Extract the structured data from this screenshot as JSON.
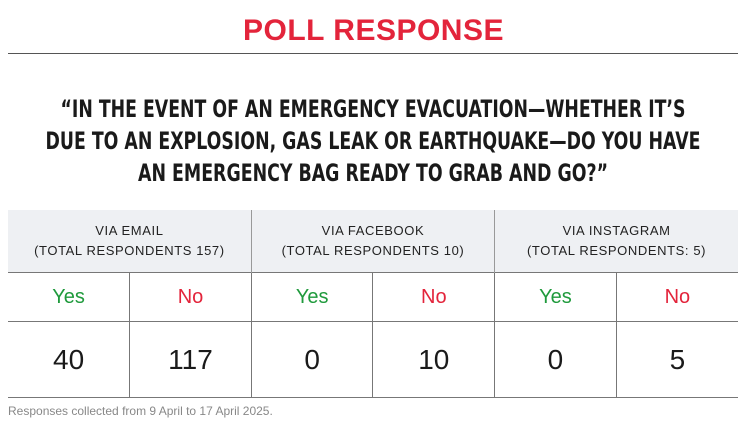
{
  "header": {
    "title": "POLL RESPONSE"
  },
  "question": {
    "lines": [
      "“IN THE EVENT OF AN EMERGENCY EVACUATION—WHETHER IT’S",
      "DUE TO AN EXPLOSION, GAS LEAK OR EARTHQUAKE—DO YOU HAVE",
      "AN EMERGENCY BAG READY TO GRAB AND GO?”"
    ]
  },
  "table": {
    "groups": [
      {
        "channel": "VIA EMAIL",
        "total": "(TOTAL RESPONDENTS 157)",
        "answers": [
          {
            "label": "Yes",
            "count": "40"
          },
          {
            "label": "No",
            "count": "117"
          }
        ]
      },
      {
        "channel": "VIA FACEBOOK",
        "total": "(TOTAL RESPONDENTS 10)",
        "answers": [
          {
            "label": "Yes",
            "count": "0"
          },
          {
            "label": "No",
            "count": "10"
          }
        ]
      },
      {
        "channel": "VIA INSTAGRAM",
        "total": "(TOTAL RESPONDENTS: 5)",
        "answers": [
          {
            "label": "Yes",
            "count": "0"
          },
          {
            "label": "No",
            "count": "5"
          }
        ]
      }
    ]
  },
  "footnote": "Responses collected from 9 April to 17 April 2025."
}
